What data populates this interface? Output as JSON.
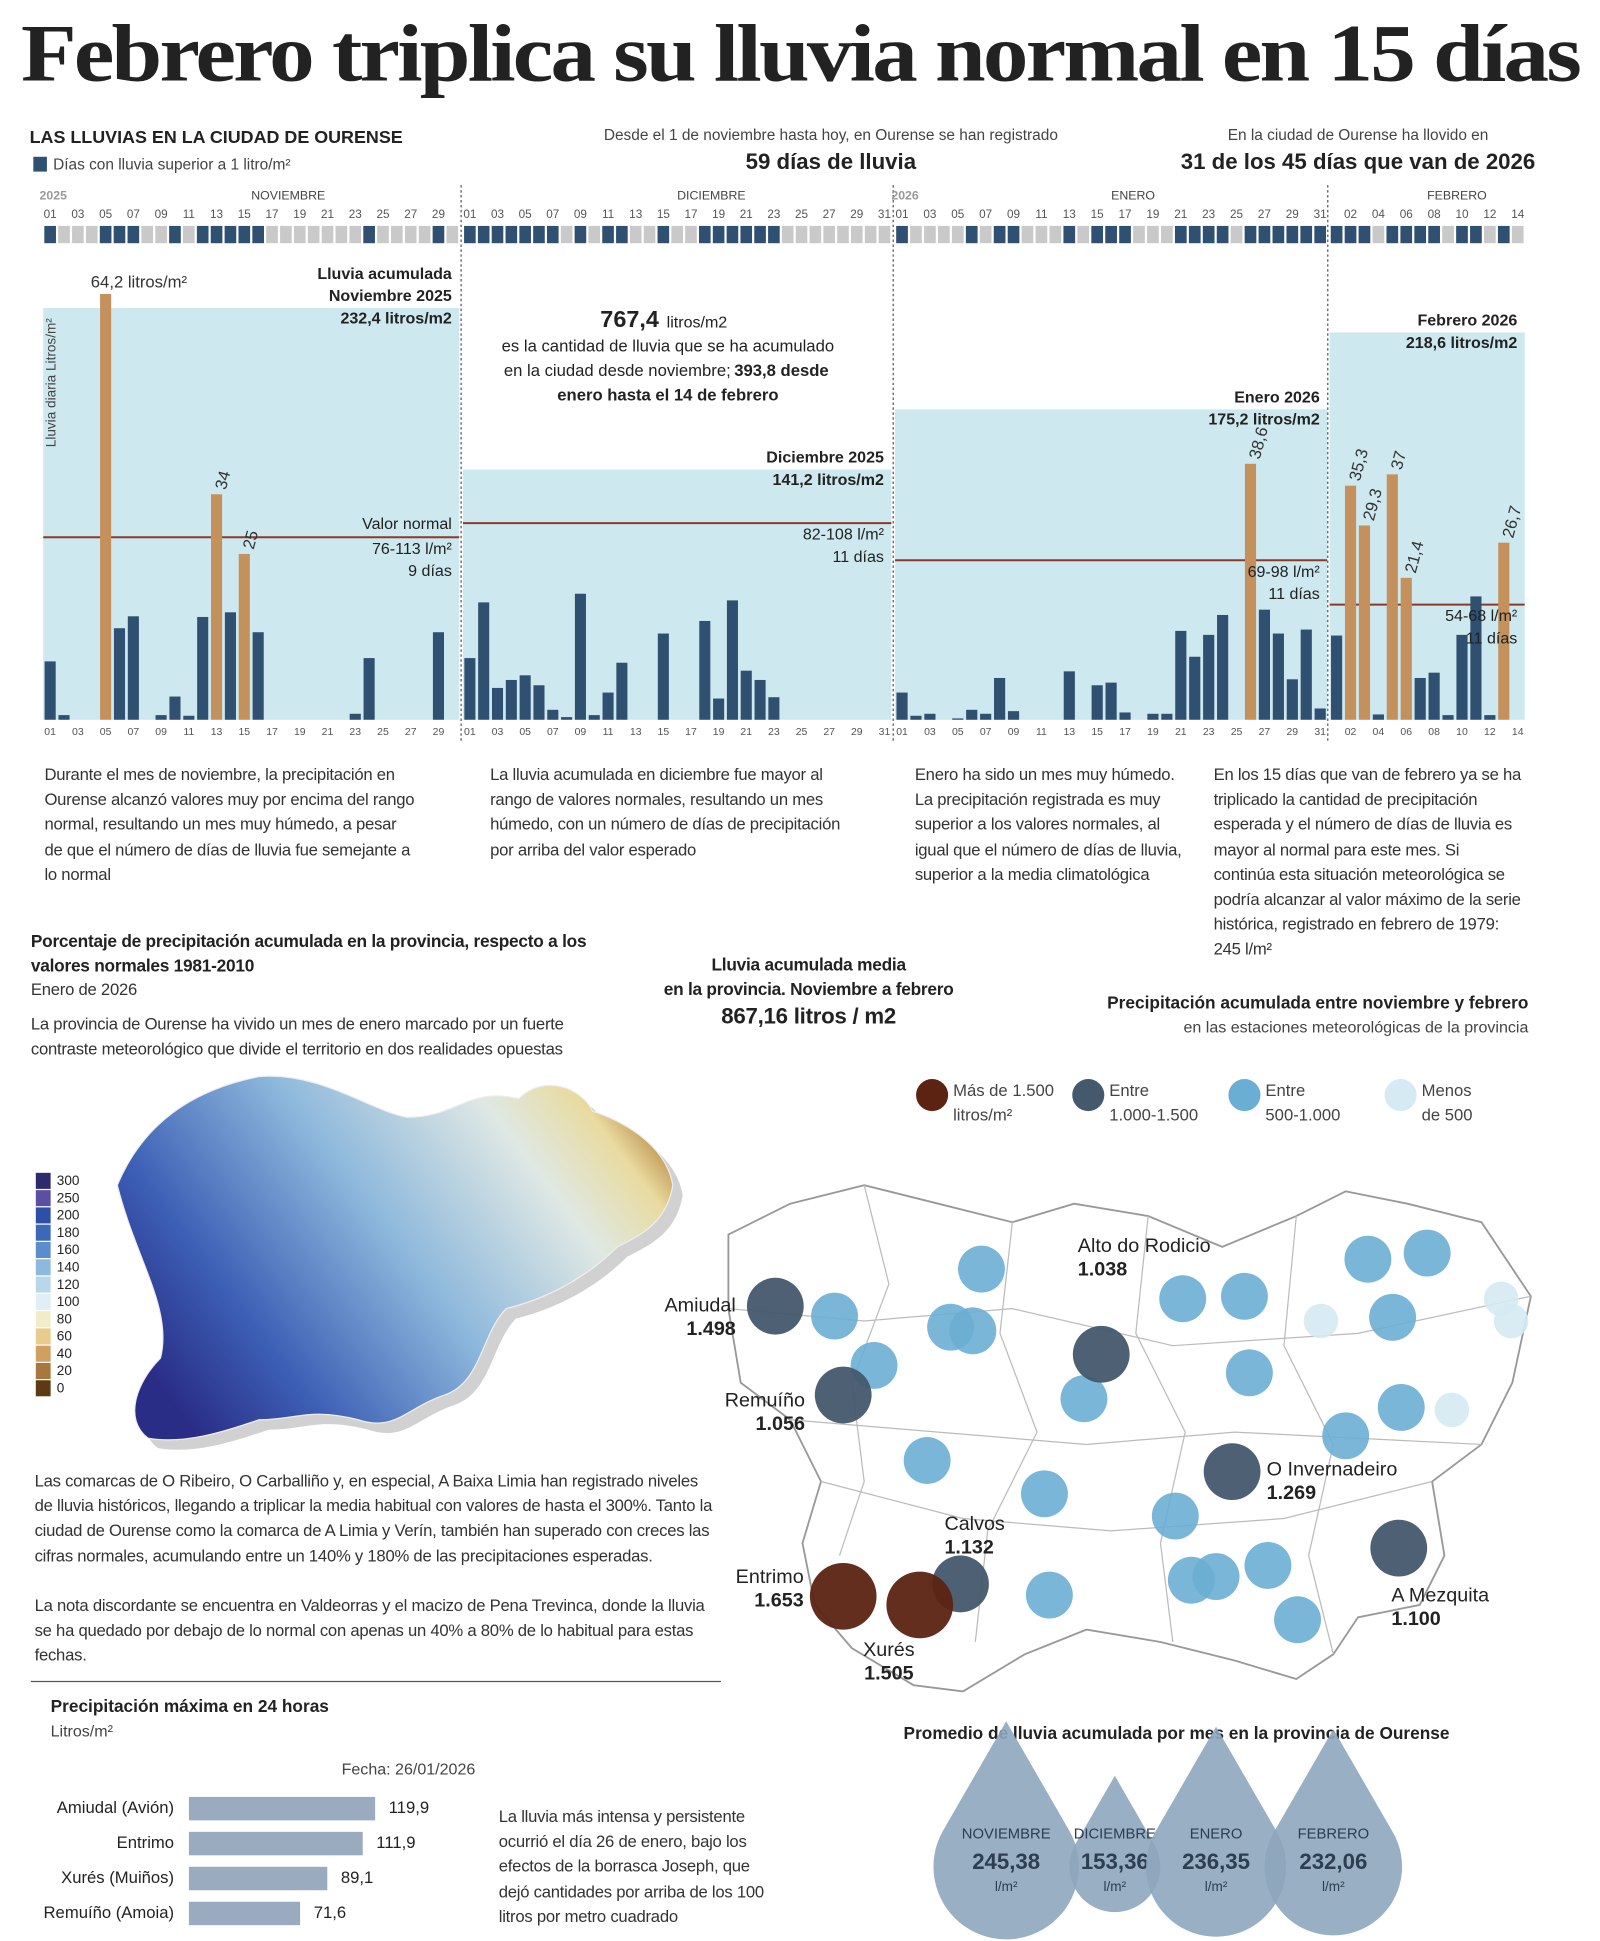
{
  "title": "Febrero triplica su lluvia normal en 15 días",
  "header": {
    "rainy_days": {
      "intro": "Desde el 1 de noviembre hasta hoy, en Ourense se han registrado",
      "value": "59 días de lluvia"
    },
    "rainy_2026": {
      "intro": "En la ciudad de Ourense ha llovido en",
      "value": "31 de los 45 días que van de 2026"
    }
  },
  "total_note": {
    "value": "767,4",
    "unit": "litros/m2",
    "line1": "es la cantidad de lluvia que se ha acumulado",
    "line2": "en la ciudad desde noviembre;",
    "line2_bold": "393,8 desde",
    "line3": "enero hasta el 14 de febrero"
  },
  "month_notes": [
    "Durante el mes de noviembre, la precipitación en Ourense alcanzó valores muy por encima del rango normal, resultando un mes muy húmedo, a pesar de que el número de días de lluvia fue semejante a lo normal",
    "La lluvia acumulada en diciembre fue mayor al rango de valores normales, resultando un mes húmedo, con un número de días de precipitación por arriba del valor esperado",
    "Enero ha sido un mes muy húmedo. La precipitación registrada es muy superior a los valores normales, al igual que el número de días de lluvia, superior a la media climatológica",
    "En los 15 días que van de febrero ya se ha triplicado la cantidad de precipitación esperada y el número de días de lluvia es mayor al normal para este mes. Si continúa esta situación meteorológica se podría alcanzar al valor máximo de la serie histórica, registrado en febrero de 1979: 245 l/m²"
  ],
  "province": {
    "title": "Porcentaje de precipitación acumulada en la provincia, respecto a los valores normales 1981-2010",
    "subtitle": "Enero de 2026",
    "intro": "La provincia de Ourense ha vivido un mes de enero marcado por un fuerte contraste meteorológico que divide el territorio en dos realidades opuestas",
    "legend": {
      "values": [
        300,
        250,
        200,
        180,
        160,
        140,
        120,
        100,
        80,
        60,
        40,
        20,
        0
      ],
      "colors": [
        "#2d2a6e",
        "#5a4fa1",
        "#2e4fa8",
        "#3b68b8",
        "#5b8dcc",
        "#8fb9dc",
        "#b8d7e8",
        "#e1eef5",
        "#f3ecc8",
        "#e8cc8d",
        "#cfa060",
        "#a9773c",
        "#5b3a14"
      ]
    },
    "body": [
      "Las comarcas de O Ribeiro, O Carballiño y, en especial, A Baixa Limia han registrado niveles de lluvia históricos, llegando a triplicar la media habitual con valores de hasta el 300%. Tanto la ciudad de Ourense como la comarca de A Limia y Verín, también han superado con creces las cifras normales, acumulando entre un 140% y 180% de las precipitaciones esperadas.",
      "La nota discordante se encuentra en Valdeorras y el macizo de Pena Trevinca, donde la lluvia se ha quedado por debajo de lo normal con apenas un 40% a 80% de lo habitual para estas fechas."
    ]
  },
  "province_mean": {
    "line1": "Lluvia acumulada media",
    "line2": "en la provincia. Noviembre a febrero",
    "value": "867,16 litros / m2"
  },
  "chart_data": [
    {
      "type": "bar",
      "title": "LAS LLUVIAS EN LA CIUDAD DE OURENSE",
      "legend": "Días con lluvia superior a 1 litro/m²",
      "y_label": "Lluvia diaria Litros/m²",
      "ylim": [
        0,
        70
      ],
      "y2lim": [
        0,
        262
      ],
      "color": "#2f5070",
      "highlight_color": "#c4915c",
      "area_color": "#cde8ef",
      "normal_color": "#8b3a2a",
      "strip_color": "#c9c9c9",
      "total_title": "Lluvia acumulada",
      "normal_title": "Valor normal",
      "months": [
        {
          "year": "2025",
          "name": "NOVIEMBRE",
          "label": "Noviembre 2025",
          "categories": [
            "01",
            null,
            "03",
            null,
            "05",
            null,
            "07",
            null,
            "09",
            null,
            "11",
            null,
            "13",
            null,
            "15",
            null,
            "17",
            null,
            "19",
            null,
            "21",
            null,
            "23",
            null,
            "25",
            null,
            "27",
            null,
            "29",
            null
          ],
          "values": [
            8.8,
            0.7,
            0,
            0,
            64.2,
            13.8,
            15.6,
            0,
            0.7,
            3.5,
            0.6,
            15.5,
            34,
            16.2,
            25,
            13.2,
            0,
            0,
            0,
            0,
            0,
            0,
            0.9,
            9.3,
            0,
            0,
            0,
            0,
            13.2,
            0
          ],
          "value_labels": [
            null,
            null,
            null,
            null,
            "64,2 litros/m²",
            null,
            null,
            null,
            null,
            null,
            null,
            null,
            "34",
            null,
            "25",
            null,
            null,
            null,
            null,
            null,
            null,
            null,
            null,
            null,
            null,
            null,
            null,
            null,
            null,
            null
          ],
          "total": 232.4,
          "total_label": "232,4 litros/m2",
          "normal": 103,
          "normal_label": "76-113 l/m²",
          "normal_days": "9 días"
        },
        {
          "name": "DICIEMBRE",
          "label": "Diciembre 2025",
          "categories": [
            "01",
            null,
            "03",
            null,
            "05",
            null,
            "07",
            null,
            "09",
            null,
            "11",
            null,
            "13",
            null,
            "15",
            null,
            "17",
            null,
            "19",
            null,
            "21",
            null,
            "23",
            null,
            "25",
            null,
            "27",
            null,
            "29",
            null,
            "31"
          ],
          "values": [
            9.3,
            17.7,
            4.8,
            6,
            6.7,
            5.2,
            1.5,
            0.4,
            19,
            0.7,
            4.1,
            8.6,
            0,
            0,
            13,
            0,
            0,
            14.9,
            3.2,
            18,
            7.4,
            6,
            3.4,
            0,
            0,
            0,
            0,
            0,
            0,
            0,
            0
          ],
          "total": 141.2,
          "total_label": "141,2 litros/m2",
          "normal": 111,
          "normal_label": "82-108 l/m²",
          "normal_days": "11 días"
        },
        {
          "year": "2026",
          "name": "ENERO",
          "label": "Enero 2026",
          "categories": [
            "01",
            null,
            "03",
            null,
            "05",
            null,
            "07",
            null,
            "09",
            null,
            "11",
            null,
            "13",
            null,
            "15",
            null,
            "17",
            null,
            "19",
            null,
            "21",
            null,
            "23",
            null,
            "25",
            null,
            "27",
            null,
            "29",
            null,
            "31"
          ],
          "values": [
            4.1,
            0.6,
            0.9,
            0,
            0.2,
            1.5,
            0.9,
            6.3,
            1.3,
            0,
            0,
            0,
            7.3,
            0,
            5.2,
            5.6,
            1.1,
            0,
            0.9,
            0.9,
            13.4,
            9.5,
            12.8,
            15.8,
            0,
            38.6,
            16.6,
            13,
            6.1,
            13.6,
            1.7
          ],
          "value_labels": [
            null,
            null,
            null,
            null,
            null,
            null,
            null,
            null,
            null,
            null,
            null,
            null,
            null,
            null,
            null,
            null,
            null,
            null,
            null,
            null,
            null,
            null,
            null,
            null,
            null,
            "38,6",
            null,
            null,
            null,
            null,
            null
          ],
          "total": 175.2,
          "total_label": "175,2 litros/m2",
          "normal": 90,
          "normal_label": "69-98 l/m²",
          "normal_days": "11 días"
        },
        {
          "name": "FEBRERO",
          "label": "Febrero 2026",
          "categories": [
            null,
            "02",
            null,
            "04",
            null,
            "06",
            null,
            "08",
            null,
            "10",
            null,
            "12",
            null,
            "14"
          ],
          "values": [
            12.7,
            35.3,
            29.3,
            0.8,
            37,
            21.4,
            6.3,
            7.1,
            0.7,
            12.8,
            18.6,
            0.7,
            26.7,
            0
          ],
          "value_labels": [
            null,
            "35,3",
            "29,3",
            null,
            "37",
            "21,4",
            null,
            null,
            null,
            null,
            null,
            null,
            "26,7",
            null
          ],
          "total": 218.6,
          "total_label": "218,6 litros/m2",
          "normal": 65,
          "normal_label": "54-68 l/m²",
          "normal_days": "11 días"
        }
      ]
    },
    {
      "type": "hbar",
      "title": "Precipitación máxima en 24 horas",
      "subtitle": "Litros/m²",
      "note": "Fecha: 26/01/2026",
      "text": "La lluvia más intensa y persistente ocurrió el día 26 de enero, bajo los efectos de la borrasca Joseph, que dejó cantidades por arriba de los 100 litros por metro cuadrado",
      "categories": [
        "Amiudal (Avión)",
        "Entrimo",
        "Xurés (Muiños)",
        "Remuíño (Amoia)"
      ],
      "values": [
        119.9,
        111.9,
        89.1,
        71.6
      ],
      "value_labels": [
        "119,9",
        "111,9",
        "89,1",
        "71,6"
      ],
      "xlim": [
        0,
        120
      ],
      "color": "#9aabbf"
    },
    {
      "type": "map",
      "title": "Precipitación acumulada entre noviembre y febrero",
      "subtitle": "en las estaciones meteorológicas de la provincia",
      "legend": [
        {
          "label": [
            "Más de 1.500",
            "litros/m²"
          ],
          "min": 1500,
          "color": "#5c2312"
        },
        {
          "label": [
            "Entre",
            "1.000-1.500"
          ],
          "min": 1000,
          "color": "#45596d"
        },
        {
          "label": [
            "Entre",
            "500-1.000"
          ],
          "min": 500,
          "color": "#6aaed3"
        },
        {
          "label": [
            "Menos",
            "de 500"
          ],
          "color": "#d5eaf3"
        }
      ],
      "categories": [
        "Amiudal",
        "Alto do Rodicio",
        "Remuíño",
        "O Invernadeiro",
        "Calvos",
        "Entrimo",
        "Xurés",
        "A Mezquita"
      ],
      "values": [
        1498,
        1038,
        1056,
        1269,
        1132,
        1653,
        1505,
        1100
      ],
      "value_labels": [
        "1.498",
        "1.038",
        "1.056",
        "1.269",
        "1.132",
        "1.653",
        "1.505",
        "1.100"
      ]
    },
    {
      "type": "drops",
      "title": "Promedio de lluvia acumulada por mes en la provincia de Ourense",
      "categories": [
        "NOVIEMBRE",
        "DICIEMBRE",
        "ENERO",
        "FEBRERO"
      ],
      "values": [
        245.38,
        153.36,
        236.35,
        232.06
      ],
      "value_labels": [
        "245,38",
        "153,36",
        "236,35",
        "232,06"
      ],
      "unit": "l/m²",
      "color": "#8ea6bd"
    }
  ]
}
